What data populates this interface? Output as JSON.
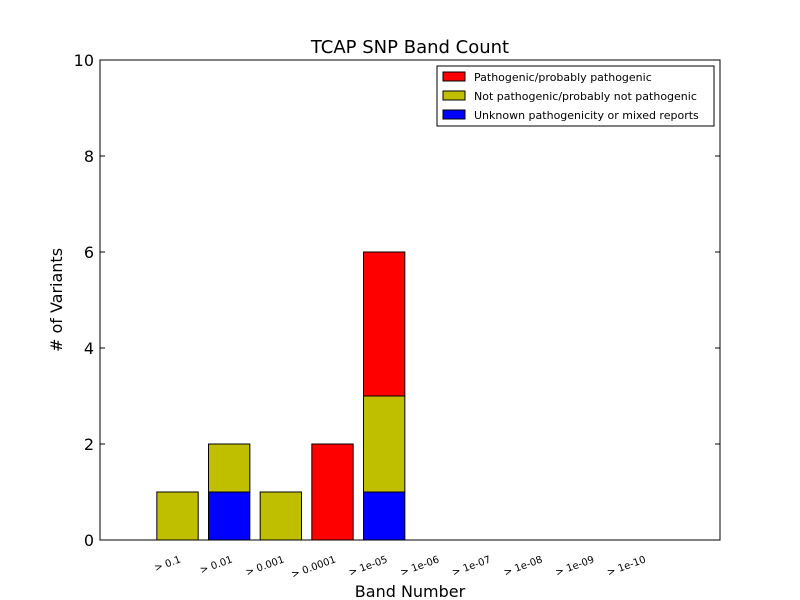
{
  "chart_data": {
    "type": "bar",
    "stacked": true,
    "title": "TCAP SNP Band Count",
    "xlabel": "Band Number",
    "ylabel": "# of Variants",
    "ylim": [
      0,
      10
    ],
    "yticks": [
      0,
      2,
      4,
      6,
      8,
      10
    ],
    "categories": [
      "> 0.1",
      "> 0.01",
      "> 0.001",
      "> 0.0001",
      "> 1e-05",
      "> 1e-06",
      "> 1e-07",
      "> 1e-08",
      "> 1e-09",
      "> 1e-10"
    ],
    "series": [
      {
        "name": "Unknown pathogenicity or mixed reports",
        "color": "#0000ff",
        "values": [
          0,
          1,
          0,
          0,
          1,
          0,
          0,
          0,
          0,
          0
        ]
      },
      {
        "name": "Not pathogenic/probably not pathogenic",
        "color": "#bfbf00",
        "values": [
          1,
          1,
          1,
          0,
          2,
          0,
          0,
          0,
          0,
          0
        ]
      },
      {
        "name": "Pathogenic/probably pathogenic",
        "color": "#ff0000",
        "values": [
          0,
          0,
          0,
          2,
          3,
          0,
          0,
          0,
          0,
          0
        ]
      }
    ],
    "legend": {
      "position": "top-right",
      "order": [
        "Pathogenic/probably pathogenic",
        "Not pathogenic/probably not pathogenic",
        "Unknown pathogenicity or mixed reports"
      ]
    },
    "grid": false
  }
}
